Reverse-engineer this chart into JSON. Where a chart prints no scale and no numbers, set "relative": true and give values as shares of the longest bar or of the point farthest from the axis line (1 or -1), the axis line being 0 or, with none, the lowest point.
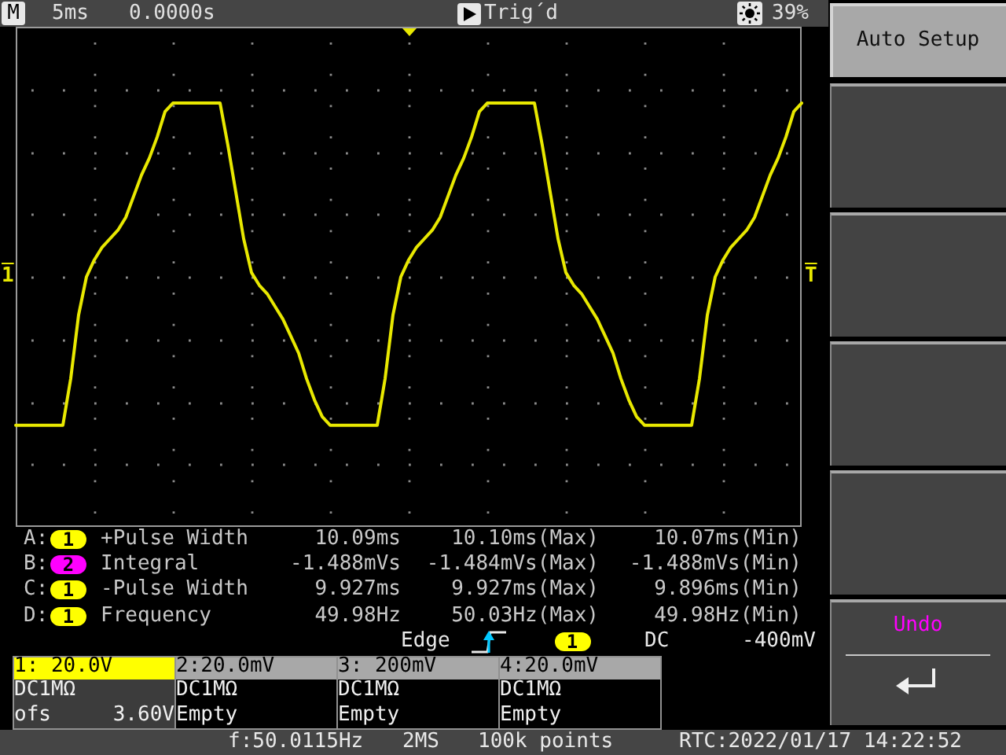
{
  "chart_data": {
    "type": "line",
    "categories": [
      null,
      null,
      null,
      null,
      null,
      null,
      null,
      null,
      null,
      null,
      null,
      null,
      null,
      null,
      null,
      null,
      null,
      null,
      null,
      null,
      null,
      null,
      null,
      null,
      null,
      null,
      null,
      null,
      null,
      null,
      null,
      null,
      null,
      null,
      null,
      null,
      null,
      null,
      null,
      null,
      null,
      null,
      null,
      null,
      null,
      null,
      null,
      null,
      null,
      null,
      null,
      null,
      null,
      null,
      null,
      null,
      null,
      null,
      null,
      null,
      null,
      null,
      null,
      null,
      null,
      null,
      null,
      null,
      null,
      null,
      null,
      null,
      null,
      null,
      null,
      null,
      null,
      null,
      null,
      null,
      null,
      null,
      null,
      null,
      null,
      null,
      null,
      null,
      null,
      null,
      null,
      null,
      null,
      null,
      null,
      null,
      null,
      null,
      null,
      null,
      null
    ],
    "values": [
      0.24,
      0.24,
      0.24,
      0.24,
      0.24,
      0.24,
      0.24,
      0.35,
      0.5,
      0.59,
      0.63,
      0.66,
      0.68,
      0.7,
      0.73,
      0.78,
      0.83,
      0.87,
      0.92,
      0.98,
      1,
      1,
      1,
      1,
      1,
      1,
      1,
      0.9,
      0.79,
      0.68,
      0.6,
      0.57,
      0.55,
      0.52,
      0.49,
      0.45,
      0.41,
      0.35,
      0.3,
      0.26,
      0.24,
      0.24,
      0.24,
      0.24,
      0.24,
      0.24,
      0.24,
      0.35,
      0.5,
      0.59,
      0.63,
      0.66,
      0.68,
      0.7,
      0.73,
      0.78,
      0.83,
      0.87,
      0.92,
      0.98,
      1,
      1,
      1,
      1,
      1,
      1,
      1,
      0.9,
      0.79,
      0.68,
      0.6,
      0.57,
      0.55,
      0.52,
      0.49,
      0.45,
      0.41,
      0.35,
      0.3,
      0.26,
      0.24,
      0.24,
      0.24,
      0.24,
      0.24,
      0.24,
      0.24,
      0.35,
      0.5,
      0.59,
      0.63,
      0.66,
      0.68,
      0.7,
      0.73,
      0.78,
      0.83,
      0.87,
      0.92,
      0.98,
      1
    ],
    "color": "#e8e800",
    "relative": true,
    "grid": true,
    "marker": "none",
    "annotations": [
      "M",
      "5ms",
      "0.0000s",
      "Trig´d",
      "39%",
      "Auto Setup",
      "Undo",
      "A:",
      "1",
      "+Pulse Width",
      "10.09ms",
      "10.10ms(Max)",
      "10.07ms(Min)",
      "B:",
      "2",
      "Integral",
      "-1.488mVs",
      "-1.484mVs(Max)",
      "-1.488mVs(Min)",
      "C:",
      "1",
      "-Pulse Width",
      "9.927ms",
      "9.927ms(Max)",
      "9.896ms(Min)",
      "D:",
      "1",
      "Frequency",
      "49.98Hz",
      "50.03Hz(Max)",
      "49.98Hz(Min)",
      "Edge",
      "1",
      "DC",
      "-400mV",
      "1: 20.0V",
      "2:20.0mV",
      "3: 200mV",
      "4:20.0mV",
      "DC1MΩ",
      "DC1MΩ",
      "DC1MΩ",
      "DC1MΩ",
      "ofs",
      "3.60V",
      "Empty",
      "Empty",
      "Empty",
      "f:50.0115Hz",
      "2MS",
      "100k points",
      "RTC:2022/01/17 14:22:52",
      "1",
      "T"
    ]
  }
}
